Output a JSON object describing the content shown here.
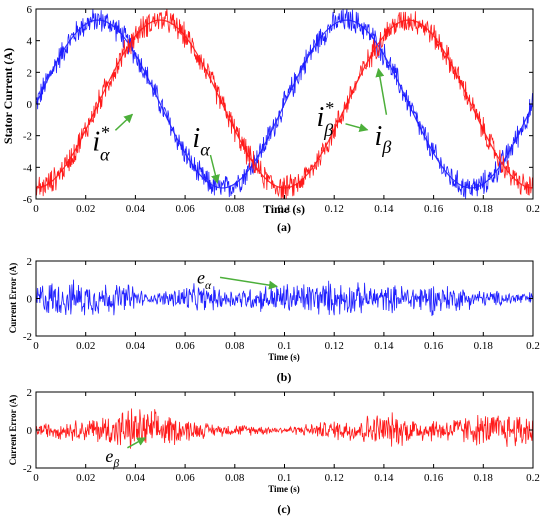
{
  "colors": {
    "blue": "#1f1fff",
    "red": "#ff1a1a",
    "arrow": "#4caf3a"
  },
  "chart_data": [
    {
      "type": "line",
      "caption": "(a)",
      "xlabel": "Time (s)",
      "ylabel": "Stator Current (A)",
      "xlim": [
        0,
        0.2
      ],
      "ylim": [
        -6,
        6
      ],
      "xticks": [
        "0",
        "0.02",
        "0.04",
        "0.06",
        "0.08",
        "0.1",
        "0.12",
        "0.14",
        "0.16",
        "0.18",
        "0.2"
      ],
      "yticks": [
        "-6",
        "-4",
        "-2",
        "0",
        "2",
        "4",
        "6"
      ],
      "series": [
        {
          "name": "i*α / iα",
          "color": "blue",
          "amplitude": 5.3,
          "frequency_hz": 10,
          "peak_times": [
            0.025,
            0.125
          ],
          "trough_times": [
            0.075,
            0.175
          ],
          "noise": 0.9
        },
        {
          "name": "i*β / iβ",
          "color": "red",
          "amplitude": 5.3,
          "frequency_hz": 10,
          "peak_times": [
            0.05,
            0.15
          ],
          "trough_times": [
            0.0,
            0.1,
            0.2
          ],
          "noise": 0.9
        }
      ],
      "annotations": [
        {
          "base": "i",
          "sub": "α",
          "sup": "*",
          "x": 0.04,
          "y": -0.4
        },
        {
          "base": "i",
          "sub": "α",
          "sup": "",
          "x": 0.071,
          "y": -3.6
        },
        {
          "base": "i",
          "sub": "β",
          "sup": "*",
          "x": 0.131,
          "y": -1.0
        },
        {
          "base": "i",
          "sub": "β",
          "sup": "",
          "x": 0.137,
          "y": 3.3
        }
      ]
    },
    {
      "type": "line",
      "caption": "(b)",
      "xlabel": "Time (s)",
      "ylabel": "Current Error (A)",
      "xlim": [
        0,
        0.2
      ],
      "ylim": [
        -2,
        2
      ],
      "xticks": [
        "0",
        "0.02",
        "0.04",
        "0.06",
        "0.08",
        "0.1",
        "0.12",
        "0.14",
        "0.16",
        "0.18",
        "0.2"
      ],
      "yticks": [
        "-2",
        "0",
        "2"
      ],
      "series": [
        {
          "name": "eα",
          "color": "blue",
          "envelope_times": [
            0,
            0.02,
            0.04,
            0.045,
            0.06,
            0.08,
            0.1,
            0.12,
            0.14,
            0.16,
            0.18,
            0.2
          ],
          "envelope_amplitude": [
            1.1,
            1.1,
            0.9,
            0.2,
            0.9,
            0.6,
            1.0,
            1.1,
            0.8,
            1.0,
            0.5,
            0.4
          ]
        }
      ],
      "annotations": [
        {
          "base": "e",
          "sub": "α",
          "x": 0.097,
          "y": 0.7
        }
      ]
    },
    {
      "type": "line",
      "caption": "(c)",
      "xlabel": "Time (s)",
      "ylabel": "Current Error (A)",
      "xlim": [
        0,
        0.2
      ],
      "ylim": [
        -2,
        2
      ],
      "xticks": [
        "0",
        "0.02",
        "0.04",
        "0.06",
        "0.08",
        "0.1",
        "0.12",
        "0.14",
        "0.16",
        "0.18",
        "0.2"
      ],
      "yticks": [
        "-2",
        "0",
        "2"
      ],
      "series": [
        {
          "name": "eβ",
          "color": "red",
          "envelope_times": [
            0,
            0.02,
            0.04,
            0.05,
            0.07,
            0.09,
            0.1,
            0.12,
            0.14,
            0.16,
            0.18,
            0.2
          ],
          "envelope_amplitude": [
            0.4,
            0.7,
            1.4,
            1.1,
            0.4,
            0.3,
            0.2,
            0.6,
            1.1,
            0.7,
            1.0,
            1.2
          ]
        }
      ],
      "annotations": [
        {
          "base": "e",
          "sub": "β",
          "x": 0.04,
          "y": -0.2
        }
      ]
    }
  ]
}
